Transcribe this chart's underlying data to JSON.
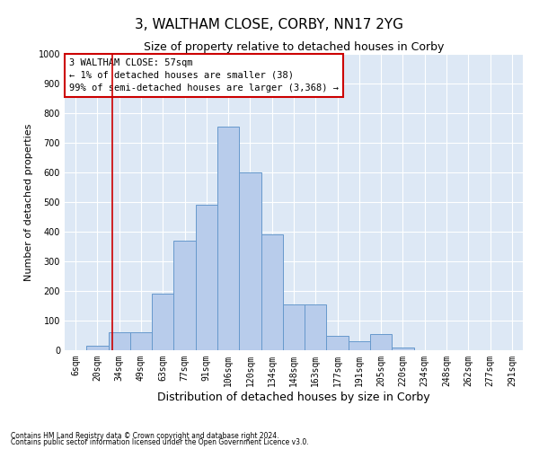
{
  "title": "3, WALTHAM CLOSE, CORBY, NN17 2YG",
  "subtitle": "Size of property relative to detached houses in Corby",
  "xlabel": "Distribution of detached houses by size in Corby",
  "ylabel": "Number of detached properties",
  "footer1": "Contains HM Land Registry data © Crown copyright and database right 2024.",
  "footer2": "Contains public sector information licensed under the Open Government Licence v3.0.",
  "categories": [
    "6sqm",
    "20sqm",
    "34sqm",
    "49sqm",
    "63sqm",
    "77sqm",
    "91sqm",
    "106sqm",
    "120sqm",
    "134sqm",
    "148sqm",
    "163sqm",
    "177sqm",
    "191sqm",
    "205sqm",
    "220sqm",
    "234sqm",
    "248sqm",
    "262sqm",
    "277sqm",
    "291sqm"
  ],
  "values": [
    0,
    15,
    60,
    60,
    190,
    370,
    490,
    755,
    600,
    390,
    155,
    155,
    50,
    30,
    55,
    10,
    0,
    0,
    0,
    0,
    0
  ],
  "bar_color": "#b8cceb",
  "bar_edge_color": "#6699cc",
  "ylim": [
    0,
    1000
  ],
  "yticks": [
    0,
    100,
    200,
    300,
    400,
    500,
    600,
    700,
    800,
    900,
    1000
  ],
  "annotation_text_line1": "3 WALTHAM CLOSE: 57sqm",
  "annotation_text_line2": "← 1% of detached houses are smaller (38)",
  "annotation_text_line3": "99% of semi-detached houses are larger (3,368) →",
  "annotation_box_color": "#ffffff",
  "annotation_box_edge": "#cc0000",
  "vline_color": "#cc0000",
  "vline_x": 1.7,
  "background_color": "#dde8f5",
  "grid_color": "#ffffff",
  "title_fontsize": 11,
  "subtitle_fontsize": 9,
  "xlabel_fontsize": 9,
  "ylabel_fontsize": 8,
  "tick_fontsize": 7,
  "annotation_fontsize": 7.5
}
